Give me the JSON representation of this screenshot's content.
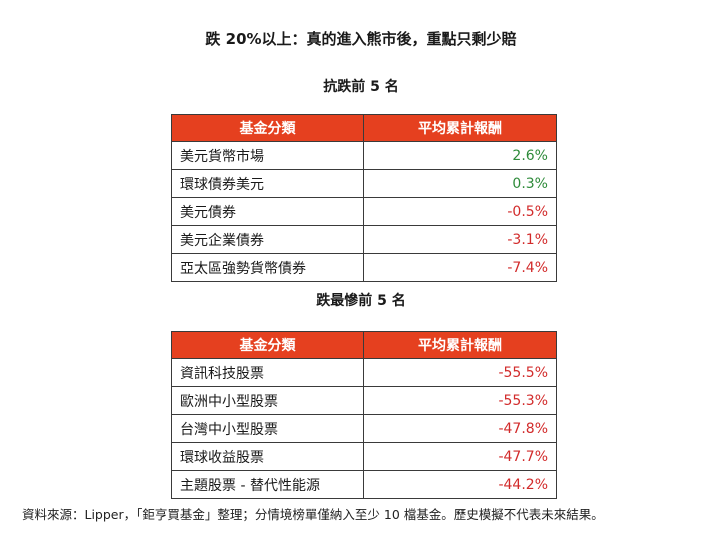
{
  "title": "跌 20%以上：真的進入熊市後，重點只剩少賠",
  "top5": {
    "heading": "抗跌前 5 名",
    "columns": [
      "基金分類",
      "平均累計報酬"
    ],
    "rows": [
      {
        "category": "美元貨幣市場",
        "return": "2.6%",
        "sign": "pos"
      },
      {
        "category": "環球債券美元",
        "return": "0.3%",
        "sign": "pos"
      },
      {
        "category": "美元債券",
        "return": "-0.5%",
        "sign": "neg"
      },
      {
        "category": "美元企業債券",
        "return": "-3.1%",
        "sign": "neg"
      },
      {
        "category": "亞太區強勢貨幣債券",
        "return": "-7.4%",
        "sign": "neg"
      }
    ]
  },
  "worst5": {
    "heading": "跌最慘前 5 名",
    "columns": [
      "基金分類",
      "平均累計報酬"
    ],
    "rows": [
      {
        "category": "資訊科技股票",
        "return": "-55.5%",
        "sign": "neg"
      },
      {
        "category": "歐洲中小型股票",
        "return": "-55.3%",
        "sign": "neg"
      },
      {
        "category": "台灣中小型股票",
        "return": "-47.8%",
        "sign": "neg"
      },
      {
        "category": "環球收益股票",
        "return": "-47.7%",
        "sign": "neg"
      },
      {
        "category": "主題股票 - 替代性能源",
        "return": "-44.2%",
        "sign": "neg"
      }
    ]
  },
  "colors": {
    "header_bg": "#e5401f",
    "positive": "#2e8b3a",
    "negative": "#d22b2b"
  },
  "source": "資料來源：Lipper，「鉅亨買基金」整理；分情境榜單僅納入至少 10 檔基金。歷史模擬不代表未來結果。"
}
